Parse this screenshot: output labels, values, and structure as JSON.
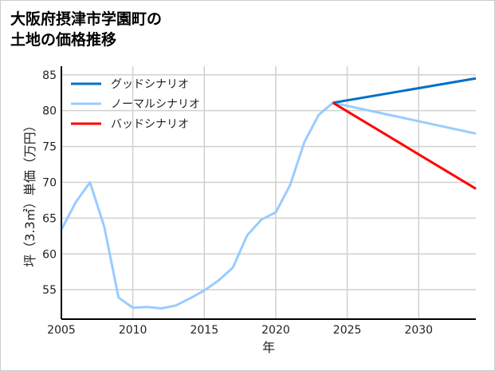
{
  "chart_data": {
    "type": "line",
    "title_lines": [
      "大阪府摂津市学園町の",
      "土地の価格推移"
    ],
    "xlabel": "年",
    "ylabel": "坪（3.3㎡）単価（万円）",
    "xlim": [
      2005,
      2034
    ],
    "ylim": [
      50.9,
      86.2
    ],
    "xticks": [
      2005,
      2010,
      2015,
      2020,
      2025,
      2030
    ],
    "yticks": [
      55,
      60,
      65,
      70,
      75,
      80,
      85
    ],
    "grid": true,
    "legend_position": "top-left",
    "series": [
      {
        "name": "グッドシナリオ",
        "color": "#0070c8",
        "x": [
          2024,
          2034
        ],
        "y": [
          81.1,
          84.5
        ]
      },
      {
        "name": "ノーマルシナリオ",
        "color": "#99ccff",
        "x": [
          2005,
          2006,
          2007,
          2008,
          2009,
          2010,
          2011,
          2012,
          2013,
          2014,
          2015,
          2016,
          2017,
          2018,
          2019,
          2020,
          2021,
          2022,
          2023,
          2024,
          2034
        ],
        "y": [
          63.4,
          67.2,
          70.0,
          63.8,
          53.9,
          52.5,
          52.6,
          52.4,
          52.8,
          53.8,
          54.9,
          56.3,
          58.1,
          62.6,
          64.8,
          65.8,
          69.6,
          75.6,
          79.4,
          81.1,
          76.8
        ]
      },
      {
        "name": "バッドシナリオ",
        "color": "#ff0000",
        "x": [
          2024,
          2034
        ],
        "y": [
          81.1,
          69.1
        ]
      }
    ]
  }
}
